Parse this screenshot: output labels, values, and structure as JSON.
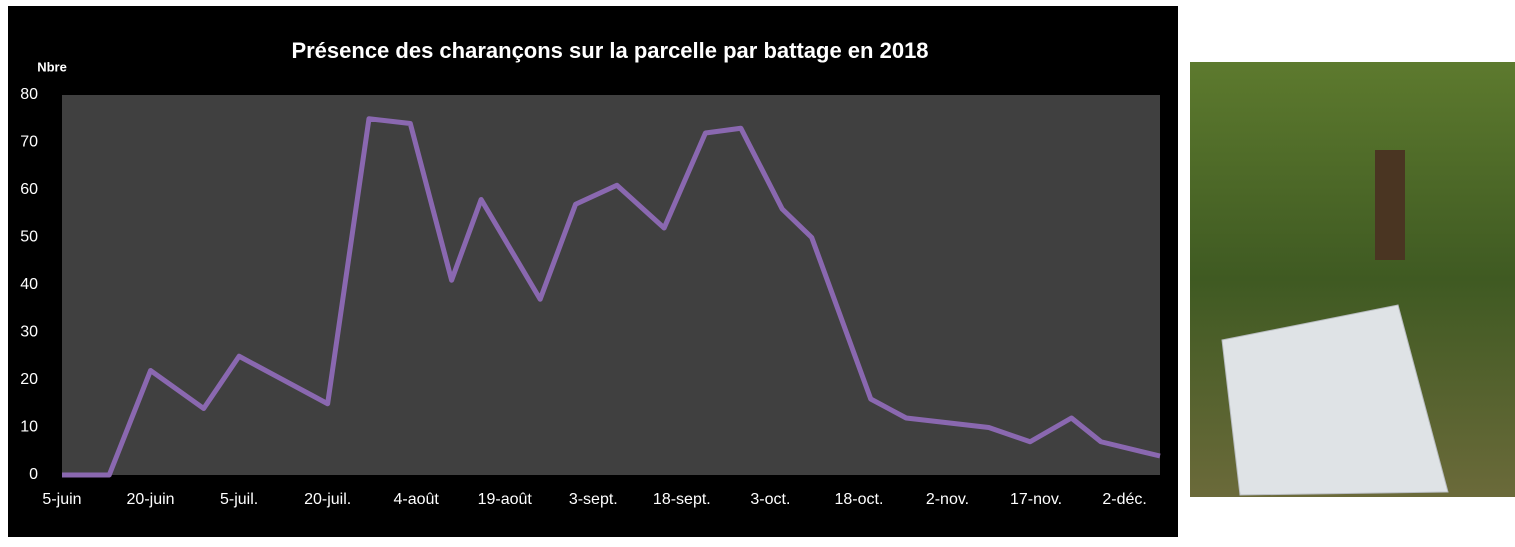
{
  "chart_data": {
    "type": "line",
    "title": "Présence des charançons sur la parcelle par battage en 2018",
    "y_label": "Nbre",
    "x": [
      0,
      8,
      15,
      24,
      30,
      45,
      52,
      59,
      66,
      71,
      81,
      87,
      94,
      102,
      109,
      115,
      122,
      127,
      137,
      143,
      157,
      164,
      171,
      176,
      186
    ],
    "series": [
      {
        "color": "#8a68b0",
        "values": [
          0,
          0,
          22,
          14,
          25,
          15,
          75,
          74,
          41,
          58,
          37,
          57,
          61,
          52,
          72,
          73,
          56,
          50,
          16,
          12,
          10,
          7,
          12,
          7,
          4
        ]
      }
    ],
    "xlim": [
      0,
      186
    ],
    "xticks": [
      {
        "value": 0,
        "label": "5-juin"
      },
      {
        "value": 15,
        "label": "20-juin"
      },
      {
        "value": 30,
        "label": "5-juil."
      },
      {
        "value": 45,
        "label": "20-juil."
      },
      {
        "value": 60,
        "label": "4-août"
      },
      {
        "value": 75,
        "label": "19-août"
      },
      {
        "value": 90,
        "label": "3-sept."
      },
      {
        "value": 105,
        "label": "18-sept."
      },
      {
        "value": 120,
        "label": "3-oct."
      },
      {
        "value": 135,
        "label": "18-oct."
      },
      {
        "value": 150,
        "label": "2-nov."
      },
      {
        "value": 165,
        "label": "17-nov."
      },
      {
        "value": 180,
        "label": "2-déc."
      }
    ],
    "ylim": [
      0,
      80
    ],
    "yticks": [
      0,
      10,
      20,
      30,
      40,
      50,
      60,
      70,
      80
    ]
  }
}
